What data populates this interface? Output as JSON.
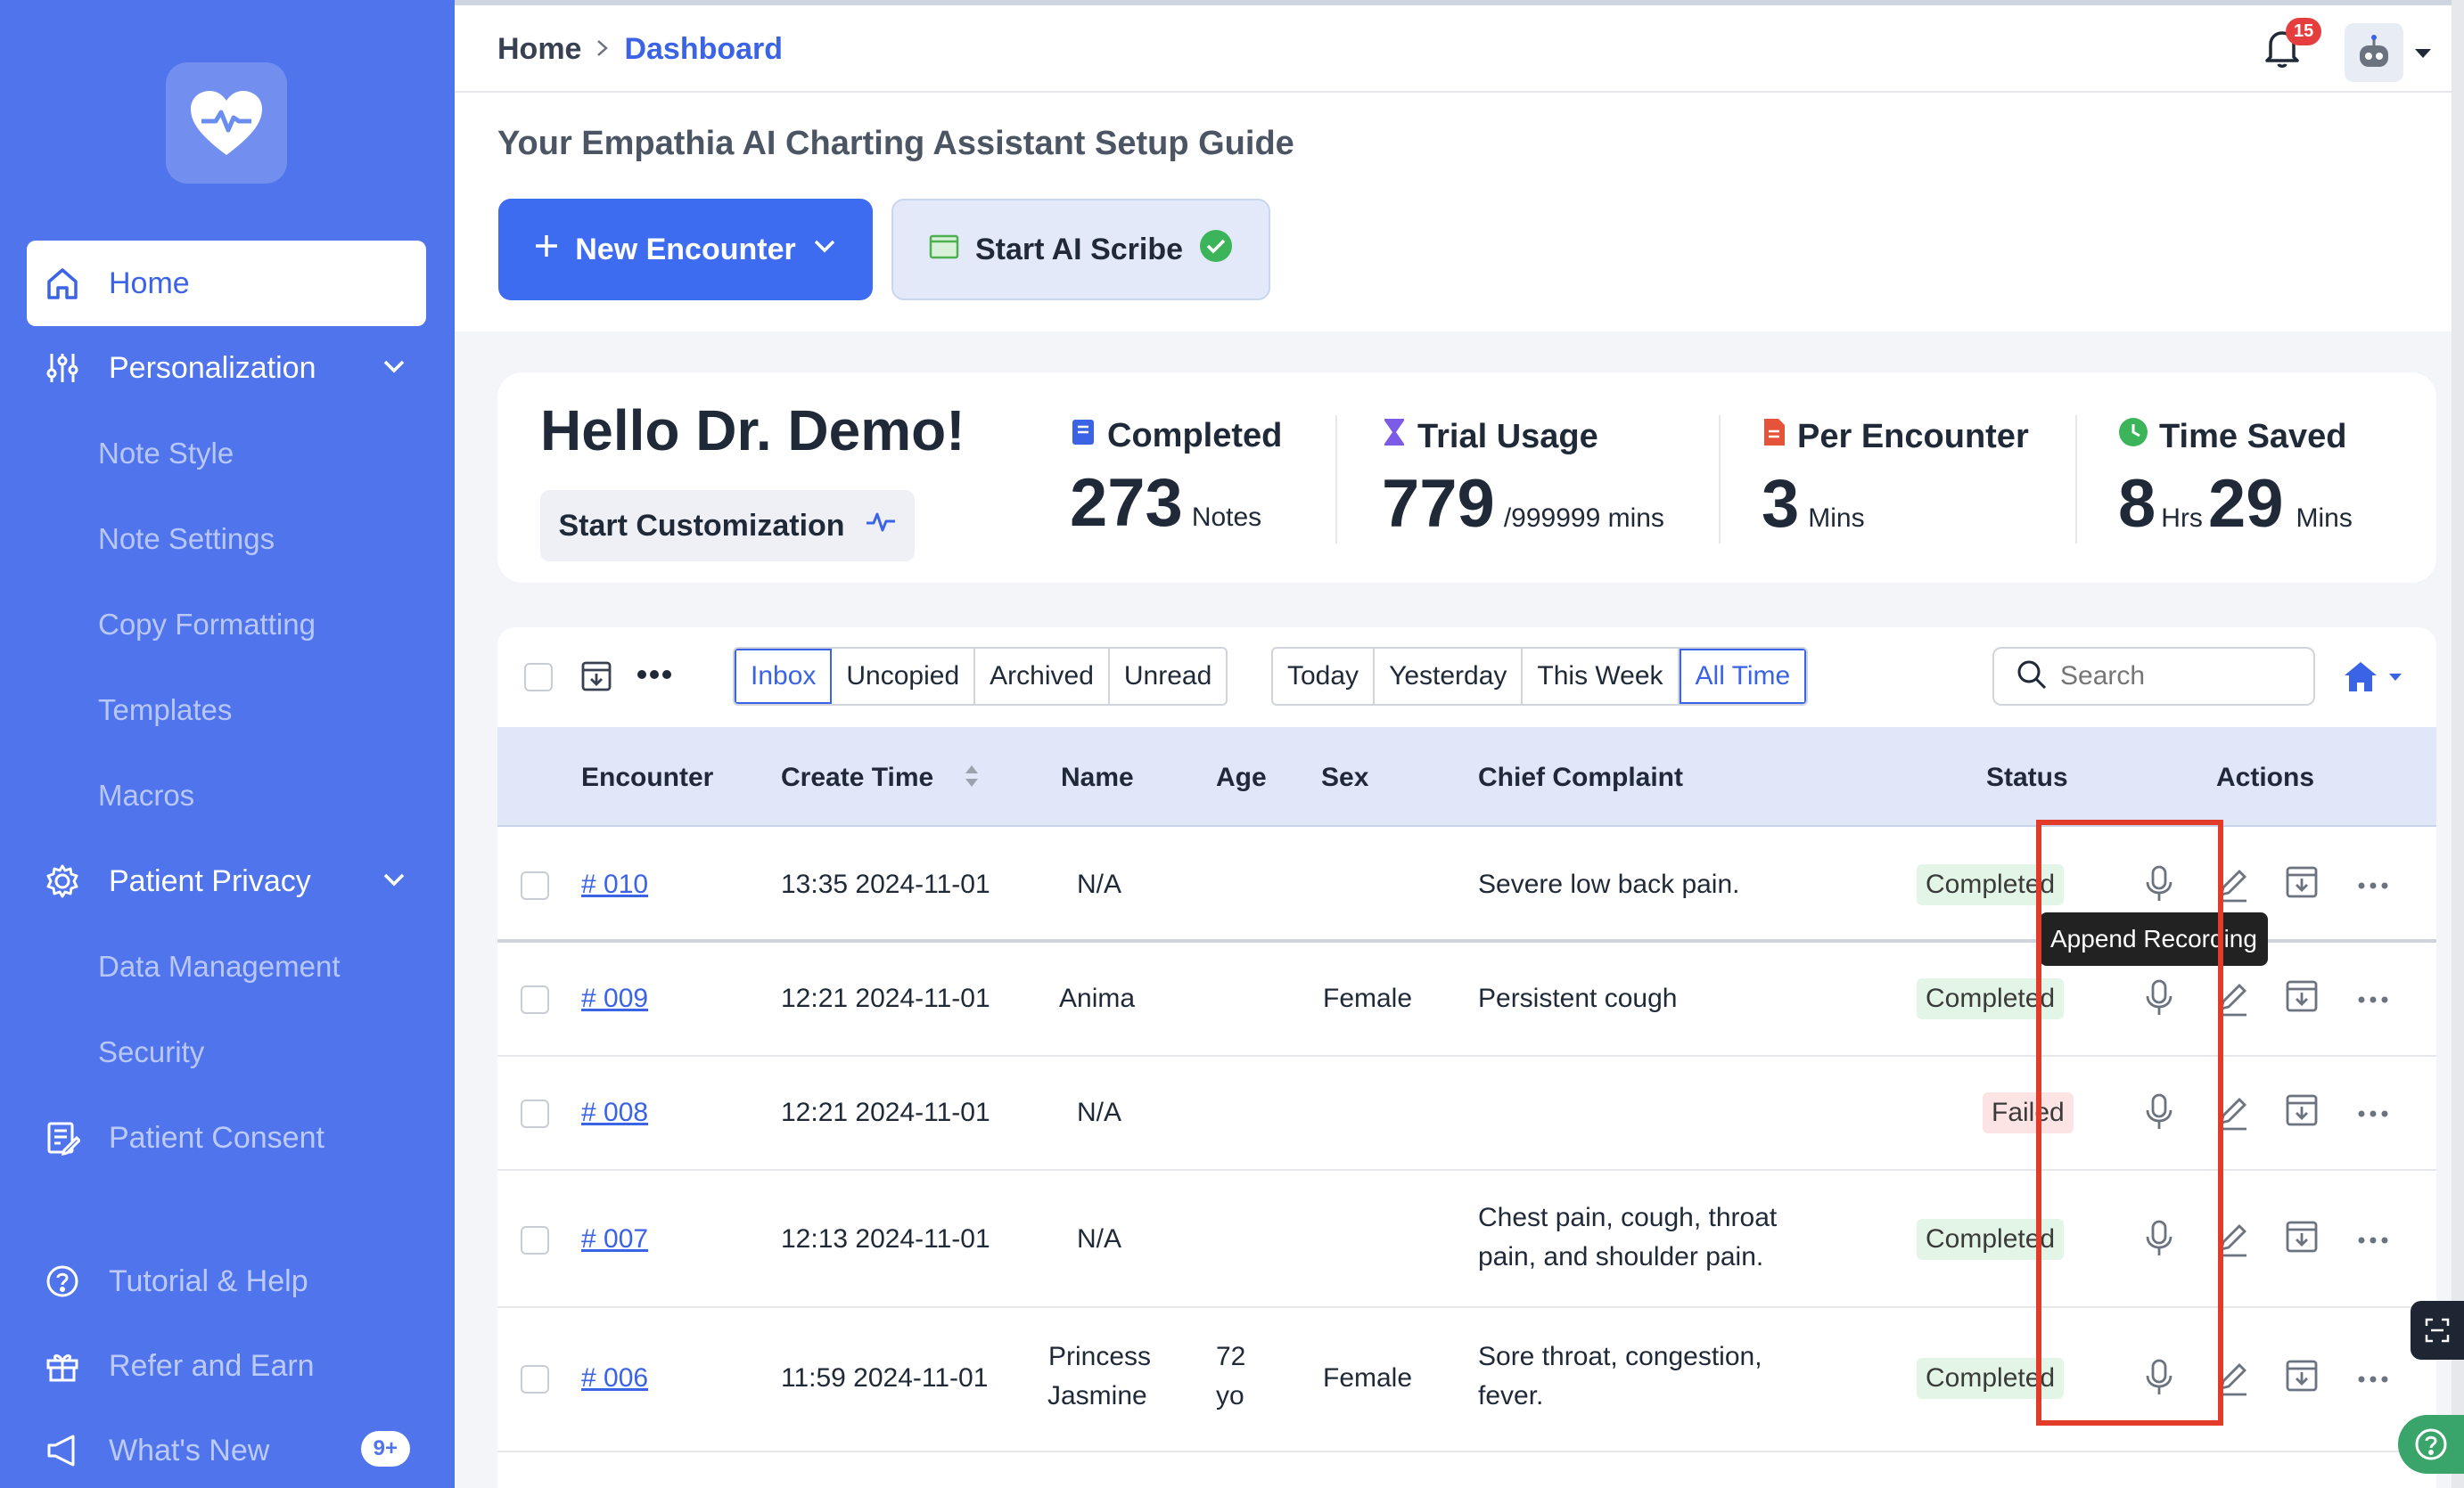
{
  "sidebar": {
    "home": "Home",
    "personalization": "Personalization",
    "personalization_items": [
      "Note Style",
      "Note Settings",
      "Copy Formatting",
      "Templates",
      "Macros"
    ],
    "patient_privacy": "Patient Privacy",
    "privacy_items": [
      "Data Management",
      "Security"
    ],
    "patient_consent": "Patient Consent",
    "tutorial": "Tutorial & Help",
    "refer": "Refer and Earn",
    "whats_new": "What's New",
    "whats_new_badge": "9+"
  },
  "topbar": {
    "breadcrumb_home": "Home",
    "breadcrumb_current": "Dashboard",
    "notification_count": "15"
  },
  "setup": {
    "title": "Your Empathia AI Charting Assistant Setup Guide",
    "new_encounter": "New Encounter",
    "start_scribe": "Start AI Scribe"
  },
  "stats": {
    "greeting": "Hello Dr. Demo!",
    "customize": "Start Customization",
    "completed_label": "Completed",
    "completed_value": "273",
    "completed_unit": "Notes",
    "trial_label": "Trial Usage",
    "trial_value": "779",
    "trial_unit": "/999999 mins",
    "per_label": "Per Encounter",
    "per_value": "3",
    "per_unit": "Mins",
    "saved_label": "Time Saved",
    "saved_hours": "8",
    "saved_hours_unit": "Hrs",
    "saved_mins": "29",
    "saved_mins_unit": "Mins"
  },
  "filters": {
    "folders": [
      "Inbox",
      "Uncopied",
      "Archived",
      "Unread"
    ],
    "folder_selected": "Inbox",
    "ranges": [
      "Today",
      "Yesterday",
      "This Week",
      "All Time"
    ],
    "range_selected": "All Time",
    "search_placeholder": "Search"
  },
  "table": {
    "headers": {
      "encounter": "Encounter",
      "create_time": "Create Time",
      "name": "Name",
      "age": "Age",
      "sex": "Sex",
      "chief_complaint": "Chief Complaint",
      "status": "Status",
      "actions": "Actions"
    },
    "rows": [
      {
        "encounter": "# 010",
        "time": "13:35 2024-11-01",
        "name": "N/A",
        "age": "",
        "sex": "",
        "complaint": "Severe low back pain.",
        "status": "Completed"
      },
      {
        "encounter": "# 009",
        "time": "12:21 2024-11-01",
        "name": "Anima",
        "age": "",
        "sex": "Female",
        "complaint": "Persistent cough",
        "status": "Completed"
      },
      {
        "encounter": "# 008",
        "time": "12:21 2024-11-01",
        "name": "N/A",
        "age": "",
        "sex": "",
        "complaint": "",
        "status": "Failed"
      },
      {
        "encounter": "# 007",
        "time": "12:13 2024-11-01",
        "name": "N/A",
        "age": "",
        "sex": "",
        "complaint_l1": "Chest pain, cough, throat",
        "complaint_l2": "pain, and shoulder pain.",
        "status": "Completed"
      },
      {
        "encounter": "# 006",
        "time": "11:59 2024-11-01",
        "name_l1": "Princess",
        "name_l2": "Jasmine",
        "age_l1": "72",
        "age_l2": "yo",
        "sex": "Female",
        "complaint_l1": "Sore throat, congestion,",
        "complaint_l2": "fever.",
        "status": "Completed"
      }
    ]
  },
  "tooltip": "Append Recording",
  "colors": {
    "sidebar": "#4f74ec",
    "primary": "#3d6cf0",
    "highlight": "#e33b2a",
    "completed_bg": "#e2f5e6",
    "failed_bg": "#fde4e4"
  }
}
